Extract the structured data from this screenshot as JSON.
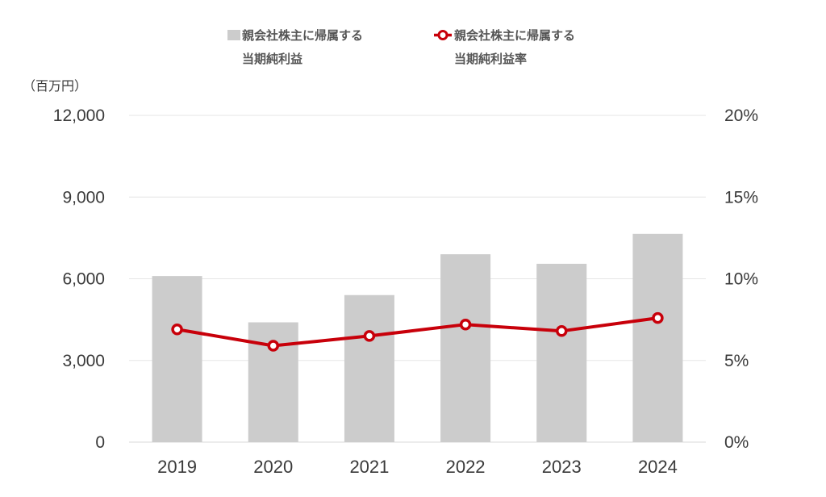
{
  "chart_data": {
    "type": "bar",
    "categories": [
      "2019",
      "2020",
      "2021",
      "2022",
      "2023",
      "2024"
    ],
    "series": [
      {
        "name": "親会社株主に帰属する当期純利益",
        "name_lines": [
          "親会社株主に帰属する",
          "当期純利益"
        ],
        "kind": "bar",
        "axis": "left",
        "color": "#cccccc",
        "values": [
          6100,
          4400,
          5400,
          6900,
          6550,
          7650
        ]
      },
      {
        "name": "親会社株主に帰属する当期純利益率",
        "name_lines": [
          "親会社株主に帰属する",
          "当期純利益率"
        ],
        "kind": "line",
        "axis": "right",
        "color": "#c8000a",
        "values": [
          6.9,
          5.9,
          6.5,
          7.2,
          6.8,
          7.6
        ]
      }
    ],
    "y_left": {
      "unit": "（百万円）",
      "ylim": [
        0,
        12000
      ],
      "ticks": [
        0,
        3000,
        6000,
        9000,
        12000
      ],
      "tick_labels": [
        "0",
        "3,000",
        "6,000",
        "9,000",
        "12,000"
      ]
    },
    "y_right": {
      "ylim": [
        0,
        20
      ],
      "ticks": [
        0,
        5,
        10,
        15,
        20
      ],
      "tick_labels": [
        "0%",
        "5%",
        "10%",
        "15%",
        "20%"
      ]
    },
    "grid": true,
    "legend_position": "top-center"
  }
}
